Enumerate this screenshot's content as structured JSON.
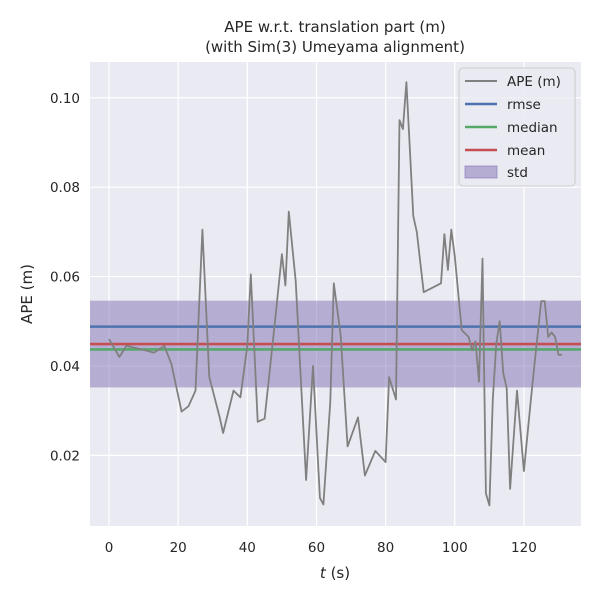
{
  "chart_data": {
    "type": "line",
    "title": [
      "APE w.r.t. translation part (m)",
      "(with Sim(3) Umeyama alignment)"
    ],
    "xlabel_italic": "t",
    "xlabel_rest": " (s)",
    "ylabel": "APE (m)",
    "xlim": [
      -5.5,
      136.5
    ],
    "ylim": [
      0.0042,
      0.108
    ],
    "xticks": [
      0,
      20,
      40,
      60,
      80,
      100,
      120
    ],
    "xtick_labels": [
      "0",
      "20",
      "40",
      "60",
      "80",
      "100",
      "120"
    ],
    "yticks": [
      0.02,
      0.04,
      0.06,
      0.08,
      0.1
    ],
    "ytick_labels": [
      "0.02",
      "0.04",
      "0.06",
      "0.08",
      "0.10"
    ],
    "grid": true,
    "legend_position": "top-right",
    "stats": {
      "rmse": 0.0488,
      "median": 0.0437,
      "mean": 0.0449,
      "std": 0.0097
    },
    "series": [
      {
        "name": "APE (m)",
        "color": "#808080",
        "x": [
          0,
          3,
          5,
          8,
          13,
          16,
          18,
          21,
          23,
          25,
          27,
          29,
          32,
          33,
          36,
          38,
          40,
          41,
          43,
          45,
          48,
          50,
          51,
          52,
          54,
          57,
          59,
          61,
          62,
          64,
          65,
          67,
          69,
          72,
          74,
          77,
          80,
          81,
          83,
          84,
          85,
          86,
          88,
          89,
          91,
          96,
          97,
          98,
          99,
          100,
          102,
          104,
          105,
          106,
          107,
          108,
          109,
          110,
          111,
          112,
          113,
          114,
          115,
          116,
          118,
          120,
          122,
          123,
          125,
          126,
          127,
          128,
          129,
          130,
          131
        ],
        "y": [
          0.046,
          0.042,
          0.0445,
          0.044,
          0.043,
          0.0445,
          0.0405,
          0.0298,
          0.031,
          0.0345,
          0.0705,
          0.0375,
          0.0285,
          0.025,
          0.0345,
          0.033,
          0.0445,
          0.0605,
          0.0275,
          0.0282,
          0.05,
          0.065,
          0.058,
          0.0745,
          0.059,
          0.0145,
          0.04,
          0.0105,
          0.009,
          0.032,
          0.0585,
          0.0468,
          0.022,
          0.0285,
          0.0155,
          0.021,
          0.0185,
          0.0375,
          0.0325,
          0.095,
          0.093,
          0.1035,
          0.0735,
          0.07,
          0.0565,
          0.0585,
          0.0695,
          0.0615,
          0.0705,
          0.0645,
          0.048,
          0.0465,
          0.0435,
          0.0455,
          0.0365,
          0.064,
          0.0115,
          0.0088,
          0.0325,
          0.045,
          0.05,
          0.0385,
          0.035,
          0.0125,
          0.0345,
          0.0165,
          0.0325,
          0.04,
          0.0545,
          0.0545,
          0.0465,
          0.0475,
          0.0465,
          0.0425,
          0.0425
        ]
      },
      {
        "name": "rmse",
        "color": "#4c72b0",
        "constant": 0.0488
      },
      {
        "name": "median",
        "color": "#55a868",
        "constant": 0.0437
      },
      {
        "name": "mean",
        "color": "#c44e52",
        "constant": 0.0449
      },
      {
        "name": "std",
        "color": "#8172b2",
        "band": [
          0.0352,
          0.0546
        ]
      }
    ]
  }
}
